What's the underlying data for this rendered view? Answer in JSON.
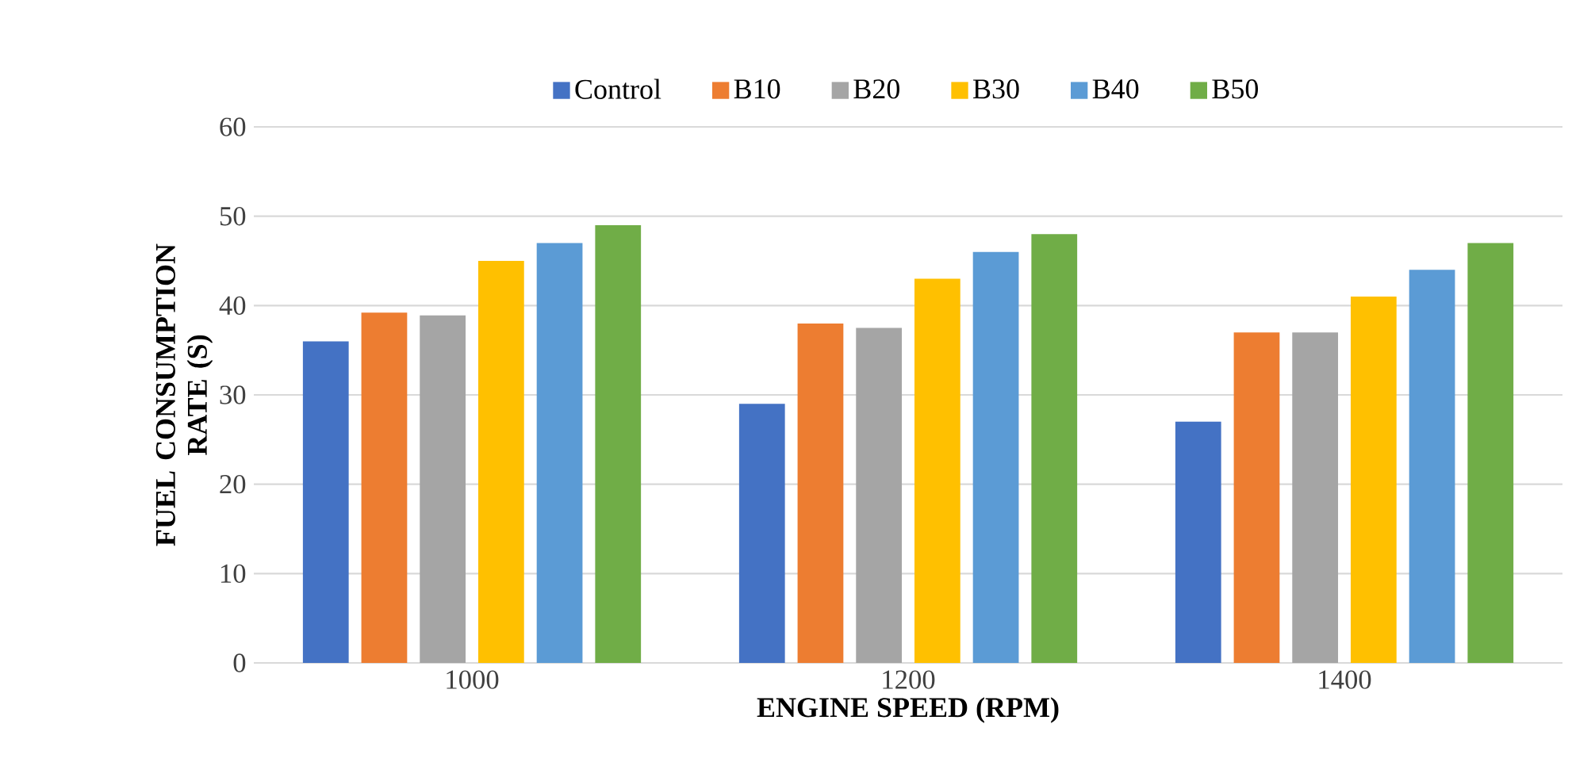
{
  "chart_data": {
    "type": "bar",
    "xlabel": "ENGINE SPEED (RPM)",
    "ylabel": "FUEL CONSUMPTION RATE (S)",
    "categories": [
      "1000",
      "1200",
      "1400"
    ],
    "series": [
      {
        "name": "Control",
        "color": "#4472c4",
        "values": [
          36,
          29,
          27
        ]
      },
      {
        "name": "B10",
        "color": "#ed7d31",
        "values": [
          39.2,
          38,
          37
        ]
      },
      {
        "name": "B20",
        "color": "#a5a5a5",
        "values": [
          38.9,
          37.5,
          37
        ]
      },
      {
        "name": "B30",
        "color": "#ffc000",
        "values": [
          45,
          43,
          41
        ]
      },
      {
        "name": "B40",
        "color": "#5b9bd5",
        "values": [
          47,
          46,
          44
        ]
      },
      {
        "name": "B50",
        "color": "#70ad47",
        "values": [
          49,
          48,
          47
        ]
      }
    ],
    "ylim": [
      0,
      60
    ],
    "yticks": [
      0,
      10,
      20,
      30,
      40,
      50,
      60
    ],
    "grid": "y",
    "legend": "top"
  }
}
